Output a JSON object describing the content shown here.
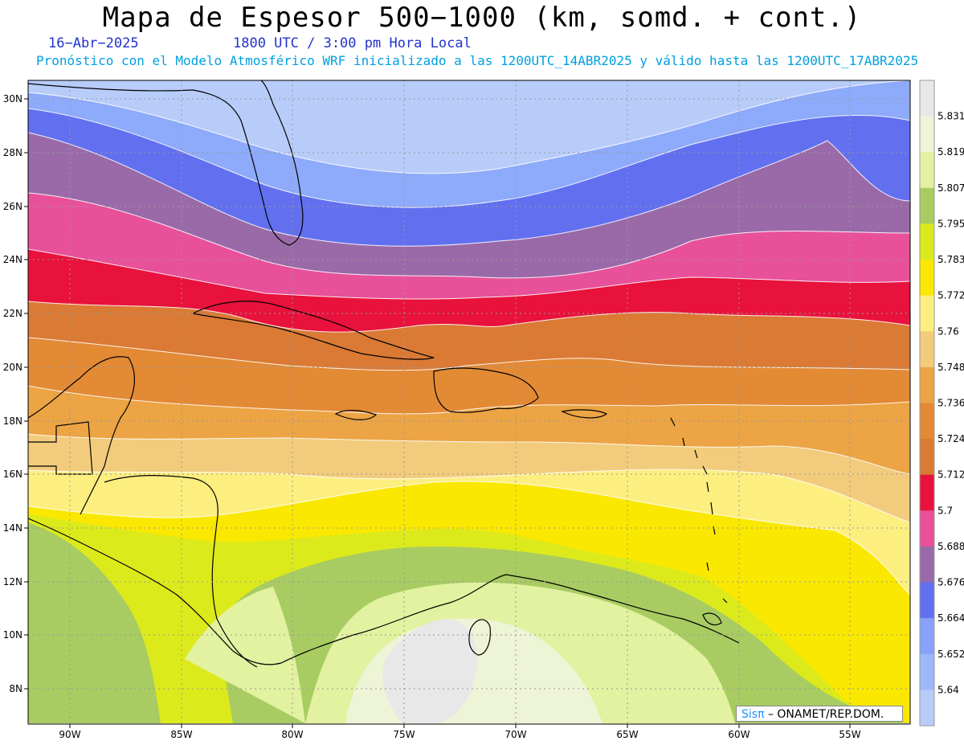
{
  "title": "Mapa de Espesor 500−1000 (km, somd. + cont.)",
  "date": "16−Abr−2025",
  "time": "1800 UTC / 3:00 pm Hora Local",
  "description": "Pronóstico con el Modelo Atmosférico WRF inicializado a las 1200UTC_14ABR2025 y válido hasta las  1200UTC_17ABR2025",
  "credit": {
    "brand": "Sisπ",
    "text": "– ONAMET/REP.DOM."
  },
  "axes": {
    "lat_labels": [
      "30N",
      "28N",
      "26N",
      "24N",
      "22N",
      "20N",
      "18N",
      "16N",
      "14N",
      "12N",
      "10N",
      "8N"
    ],
    "lon_labels": [
      "90W",
      "85W",
      "80W",
      "75W",
      "70W",
      "65W",
      "60W",
      "55W"
    ]
  },
  "colorbar": {
    "levels": [
      "5.831",
      "5.819",
      "5.807",
      "5.795",
      "5.783",
      "5.772",
      "5.76",
      "5.748",
      "5.736",
      "5.724",
      "5.712",
      "5.7",
      "5.688",
      "5.676",
      "5.664",
      "5.652",
      "5.64"
    ],
    "colors": [
      "#e8e8e8",
      "#eef4d6",
      "#e2f2a0",
      "#a8cc62",
      "#dcea1c",
      "#fae800",
      "#fdee80",
      "#f2cc7c",
      "#eca444",
      "#e38a35",
      "#da7a35",
      "#e8123c",
      "#e8509a",
      "#9a6aa8",
      "#6270f0",
      "#86a2fa",
      "#9cb8fa",
      "#b8ccfa"
    ]
  },
  "bands_order_top_to_bottom": [
    "5.652",
    "5.664",
    "5.676",
    "5.688",
    "5.7",
    "5.712",
    "5.724",
    "5.736",
    "5.748",
    "5.76",
    "5.772",
    "5.783",
    "5.795",
    "5.807",
    "5.819",
    "5.831"
  ],
  "band_colors": {
    "5.652": "#b8ccfa",
    "5.664": "#8eaafa",
    "5.676": "#6270f0",
    "5.688": "#9a6aa8",
    "5.7": "#e8509a",
    "5.712": "#e8123c",
    "5.724": "#da7a35",
    "5.736": "#e38a35",
    "5.748": "#eca444",
    "5.76": "#f2cc7c",
    "5.772": "#fdee80",
    "5.783": "#fae800",
    "5.795": "#dcea1c",
    "5.807": "#a8cc62",
    "5.819": "#e2f2a0",
    "5.831": "#eef4d6",
    "5.84": "#e8e8e8"
  }
}
